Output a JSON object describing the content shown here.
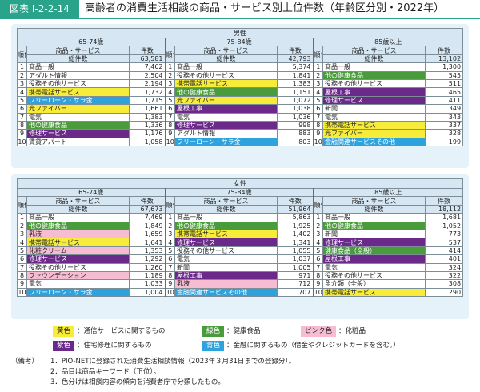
{
  "figure": {
    "label": "図表 I-2-2-14",
    "title": "高齢者の消費生活相談の商品・サービス別上位件数（年齢区分別・2022年）"
  },
  "headers": {
    "rank": "順位",
    "product": "商品・サービス",
    "count": "件数",
    "total_label": "総件数"
  },
  "male": {
    "sex": "男性",
    "groups": [
      {
        "age": "65-74歳",
        "total": "63,581",
        "rows": [
          {
            "rank": "1",
            "name": "商品一般",
            "count": "7,462",
            "color": ""
          },
          {
            "rank": "2",
            "name": "アダルト情報",
            "count": "2,504",
            "color": ""
          },
          {
            "rank": "3",
            "name": "役務その他サービス",
            "count": "2,194",
            "color": ""
          },
          {
            "rank": "4",
            "name": "携帯電話サービス",
            "count": "1,732",
            "color": "yellow"
          },
          {
            "rank": "5",
            "name": "フリーローン・サラ金",
            "count": "1,715",
            "color": "blue"
          },
          {
            "rank": "6",
            "name": "光ファイバー",
            "count": "1,661",
            "color": "yellow"
          },
          {
            "rank": "7",
            "name": "電気",
            "count": "1,383",
            "color": ""
          },
          {
            "rank": "8",
            "name": "他の健康食品",
            "count": "1,336",
            "color": "green"
          },
          {
            "rank": "9",
            "name": "修理サービス",
            "count": "1,176",
            "color": "purple"
          },
          {
            "rank": "10",
            "name": "賃貸アパート",
            "count": "1,058",
            "color": ""
          }
        ]
      },
      {
        "age": "75-84歳",
        "total": "42,793",
        "rows": [
          {
            "rank": "1",
            "name": "商品一般",
            "count": "5,374",
            "color": ""
          },
          {
            "rank": "2",
            "name": "役務その他サービス",
            "count": "1,841",
            "color": ""
          },
          {
            "rank": "3",
            "name": "携帯電話サービス",
            "count": "1,383",
            "color": "yellow"
          },
          {
            "rank": "4",
            "name": "他の健康食品",
            "count": "1,151",
            "color": "green"
          },
          {
            "rank": "5",
            "name": "光ファイバー",
            "count": "1,072",
            "color": "yellow"
          },
          {
            "rank": "6",
            "name": "屋根工事",
            "count": "1,038",
            "color": "purple"
          },
          {
            "rank": "7",
            "name": "電気",
            "count": "1,036",
            "color": ""
          },
          {
            "rank": "8",
            "name": "修理サービス",
            "count": "998",
            "color": "purple"
          },
          {
            "rank": "9",
            "name": "アダルト情報",
            "count": "883",
            "color": ""
          },
          {
            "rank": "10",
            "name": "フリーローン・サラ金",
            "count": "803",
            "color": "blue"
          }
        ]
      },
      {
        "age": "85歳以上",
        "total": "13,102",
        "rows": [
          {
            "rank": "1",
            "name": "商品一般",
            "count": "1,300",
            "color": ""
          },
          {
            "rank": "2",
            "name": "他の健康食品",
            "count": "545",
            "color": "green"
          },
          {
            "rank": "3",
            "name": "役務その他サービス",
            "count": "511",
            "color": ""
          },
          {
            "rank": "4",
            "name": "屋根工事",
            "count": "465",
            "color": "purple"
          },
          {
            "rank": "5",
            "name": "修理サービス",
            "count": "411",
            "color": "purple"
          },
          {
            "rank": "6",
            "name": "新聞",
            "count": "349",
            "color": ""
          },
          {
            "rank": "7",
            "name": "電気",
            "count": "343",
            "color": ""
          },
          {
            "rank": "8",
            "name": "携帯電話サービス",
            "count": "337",
            "color": "yellow"
          },
          {
            "rank": "9",
            "name": "光ファイバー",
            "count": "328",
            "color": "yellow"
          },
          {
            "rank": "10",
            "name": "金融関連サービスその他",
            "count": "199",
            "color": "blue"
          }
        ]
      }
    ]
  },
  "female": {
    "sex": "女性",
    "groups": [
      {
        "age": "65-74歳",
        "total": "67,673",
        "rows": [
          {
            "rank": "1",
            "name": "商品一般",
            "count": "7,469",
            "color": ""
          },
          {
            "rank": "2",
            "name": "他の健康食品",
            "count": "1,849",
            "color": "green"
          },
          {
            "rank": "3",
            "name": "乳液",
            "count": "1,659",
            "color": "pink"
          },
          {
            "rank": "4",
            "name": "携帯電話サービス",
            "count": "1,641",
            "color": "yellow"
          },
          {
            "rank": "5",
            "name": "化粧クリーム",
            "count": "1,353",
            "color": "pink"
          },
          {
            "rank": "6",
            "name": "修理サービス",
            "count": "1,292",
            "color": "purple"
          },
          {
            "rank": "7",
            "name": "役務その他サービス",
            "count": "1,260",
            "color": ""
          },
          {
            "rank": "8",
            "name": "ファウンデーション",
            "count": "1,189",
            "color": "pink"
          },
          {
            "rank": "9",
            "name": "電気",
            "count": "1,033",
            "color": ""
          },
          {
            "rank": "10",
            "name": "フリーローン・サラ金",
            "count": "1,004",
            "color": "blue"
          }
        ]
      },
      {
        "age": "75-84歳",
        "total": "51,964",
        "rows": [
          {
            "rank": "1",
            "name": "商品一般",
            "count": "5,863",
            "color": ""
          },
          {
            "rank": "2",
            "name": "他の健康食品",
            "count": "1,925",
            "color": "green"
          },
          {
            "rank": "3",
            "name": "携帯電話サービス",
            "count": "1,402",
            "color": "yellow"
          },
          {
            "rank": "4",
            "name": "修理サービス",
            "count": "1,341",
            "color": "purple"
          },
          {
            "rank": "5",
            "name": "役務その他サービス",
            "count": "1,055",
            "color": ""
          },
          {
            "rank": "6",
            "name": "電気",
            "count": "1,037",
            "color": ""
          },
          {
            "rank": "7",
            "name": "新聞",
            "count": "1,005",
            "color": ""
          },
          {
            "rank": "8",
            "name": "屋根工事",
            "count": "971",
            "color": "purple"
          },
          {
            "rank": "9",
            "name": "乳液",
            "count": "712",
            "color": "pink"
          },
          {
            "rank": "10",
            "name": "金融関連サービスその他",
            "count": "707",
            "color": "blue"
          }
        ]
      },
      {
        "age": "85歳以上",
        "total": "18,112",
        "rows": [
          {
            "rank": "1",
            "name": "商品一般",
            "count": "1,681",
            "color": ""
          },
          {
            "rank": "2",
            "name": "他の健康食品",
            "count": "1,052",
            "color": "green"
          },
          {
            "rank": "3",
            "name": "新聞",
            "count": "773",
            "color": ""
          },
          {
            "rank": "4",
            "name": "修理サービス",
            "count": "537",
            "color": "purple"
          },
          {
            "rank": "5",
            "name": "健康食品（全般）",
            "count": "414",
            "color": "green"
          },
          {
            "rank": "6",
            "name": "屋根工事",
            "count": "401",
            "color": "purple"
          },
          {
            "rank": "7",
            "name": "電気",
            "count": "324",
            "color": ""
          },
          {
            "rank": "8",
            "name": "役務その他サービス",
            "count": "322",
            "color": ""
          },
          {
            "rank": "9",
            "name": "魚介類（全般）",
            "count": "308",
            "color": ""
          },
          {
            "rank": "10",
            "name": "携帯電話サービス",
            "count": "290",
            "color": "yellow"
          }
        ]
      }
    ]
  },
  "legend": {
    "yellow": {
      "label": "黄色",
      "desc": "：通信サービスに関するもの"
    },
    "green": {
      "label": "緑色",
      "desc": "：健康食品"
    },
    "pink": {
      "label": "ピンク色",
      "desc": "：化粧品"
    },
    "purple": {
      "label": "紫色",
      "desc": "：住宅修理に関するもの"
    },
    "blue": {
      "label": "青色",
      "desc": "：金融に関するもの（借金やクレジットカードを含む。）"
    }
  },
  "notes": {
    "label": "（備考）",
    "lines": [
      "1．PIO-NETに登録された消費生活相談情報（2023年３月31日までの登録分）。",
      "2．品目は商品キーワード（下位）。",
      "3．色分けは相談内容の傾向を消費者庁で分類したもの。"
    ]
  },
  "colors": {
    "header_green": "#29a48a",
    "panel": "#e6f2fa",
    "head_cell": "#d6e7f3",
    "yellow": "#f7ec3a",
    "green": "#4a9b3b",
    "pink": "#f6bcd2",
    "purple": "#6b2a8a",
    "blue": "#2ea2dc"
  }
}
